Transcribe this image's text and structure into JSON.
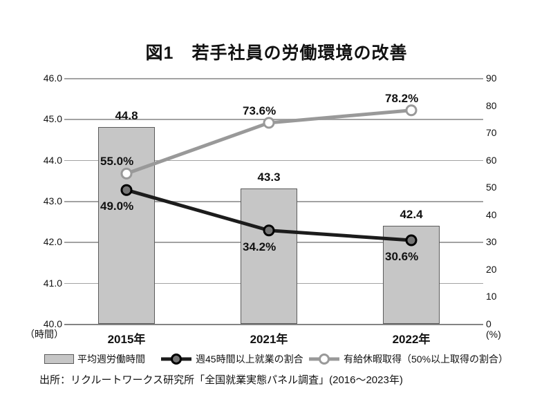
{
  "chart_data": {
    "type": "combo",
    "title": "図1　若手社員の労働環境の改善",
    "categories": [
      "2015年",
      "2021年",
      "2022年"
    ],
    "bar_series": {
      "name": "平均週労働時間",
      "axis": "left",
      "values": [
        44.8,
        43.3,
        42.4
      ],
      "labels": [
        "44.8",
        "43.3",
        "42.4"
      ]
    },
    "line_series": [
      {
        "name": "週45時間以上就業の割合",
        "axis": "right",
        "values": [
          49.0,
          34.2,
          30.6
        ],
        "labels": [
          "49.0%",
          "34.2%",
          "30.6%"
        ],
        "color": "#1c1c1c",
        "marker_fill": "#757575",
        "marker_stroke": "#000000",
        "label_position": "below"
      },
      {
        "name": "有給休暇取得（50%以上取得の割合）",
        "axis": "right",
        "values": [
          55.0,
          73.6,
          78.2
        ],
        "labels": [
          "55.0%",
          "73.6%",
          "78.2%"
        ],
        "color": "#999999",
        "marker_fill": "#ffffff",
        "marker_stroke": "#999999",
        "label_position": "above"
      }
    ],
    "left_axis": {
      "min": 40,
      "max": 46,
      "ticks": [
        "46.0",
        "45.0",
        "44.0",
        "43.0",
        "42.0",
        "41.0",
        "40.0"
      ],
      "unit": "（時間）"
    },
    "right_axis": {
      "min": 0,
      "max": 90,
      "ticks": [
        "90",
        "80",
        "70",
        "60",
        "50",
        "40",
        "30",
        "20",
        "10",
        "0"
      ],
      "unit": "(%)"
    },
    "grid": true,
    "legend_position": "bottom",
    "colors": {
      "bar_fill": "#c6c6c6",
      "bar_border": "#5a5a5a",
      "gridline": "#a2a2a2",
      "axis_line": "#838383",
      "text": "#111111"
    },
    "source": "出所：リクルートワークス研究所「全国就業実態パネル調査」(2016〜2023年)"
  }
}
